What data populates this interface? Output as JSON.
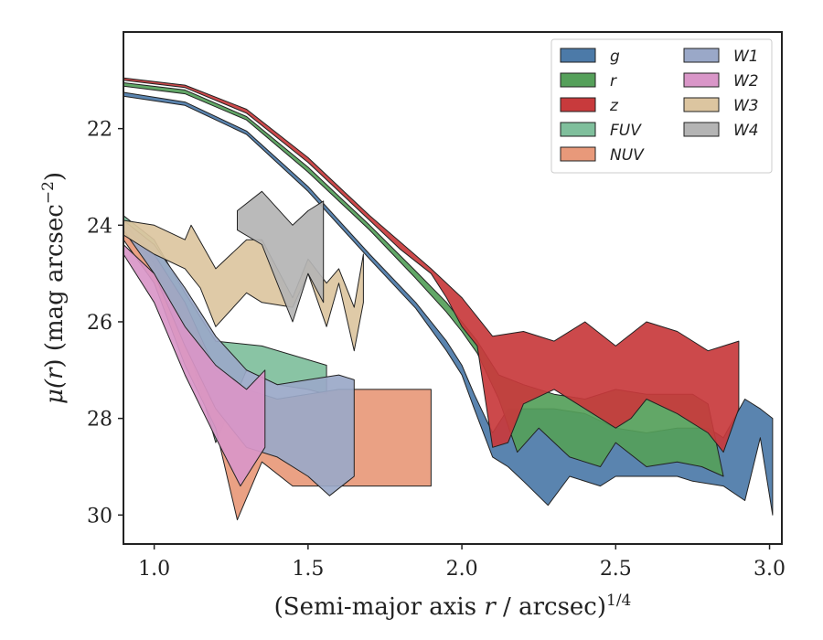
{
  "chart_data": {
    "type": "area",
    "xlabel_main": "(Semi-major axis ",
    "xlabel_var": "r",
    "xlabel_rest": " / arcsec)",
    "xlabel_sup": "1/4",
    "ylabel_main": "μ(",
    "ylabel_var": "r",
    "ylabel_rest": ") (mag arcsec",
    "ylabel_sup": "−2",
    "ylabel_close": ")",
    "xlim": [
      0.9,
      3.04
    ],
    "ylim": [
      30.6,
      20.0
    ],
    "y_inverted": true,
    "xticks": [
      1.0,
      1.5,
      2.0,
      2.5,
      3.0
    ],
    "xtick_labels": [
      "1.0",
      "1.5",
      "2.0",
      "2.5",
      "3.0"
    ],
    "yticks": [
      22,
      24,
      26,
      28,
      30
    ],
    "ytick_labels": [
      "22",
      "24",
      "26",
      "28",
      "30"
    ],
    "legend_position": "top-right",
    "legend_columns": 2,
    "series": [
      {
        "name": "g",
        "color": "#4c7aa8",
        "upper": [
          [
            0.9,
            21.25
          ],
          [
            1.1,
            21.45
          ],
          [
            1.3,
            22.05
          ],
          [
            1.5,
            23.2
          ],
          [
            1.7,
            24.6
          ],
          [
            1.85,
            25.6
          ],
          [
            1.95,
            26.4
          ],
          [
            2.0,
            26.9
          ],
          [
            2.04,
            27.5
          ],
          [
            2.1,
            28.3
          ],
          [
            2.15,
            27.8
          ],
          [
            2.3,
            27.8
          ],
          [
            2.4,
            27.9
          ],
          [
            2.5,
            28.2
          ],
          [
            2.6,
            28.3
          ],
          [
            2.7,
            28.2
          ],
          [
            2.8,
            28.2
          ],
          [
            2.85,
            28.4
          ],
          [
            2.92,
            27.6
          ],
          [
            2.97,
            27.8
          ],
          [
            3.01,
            28.0
          ]
        ],
        "lower": [
          [
            0.9,
            21.33
          ],
          [
            1.1,
            21.52
          ],
          [
            1.3,
            22.12
          ],
          [
            1.5,
            23.3
          ],
          [
            1.7,
            24.7
          ],
          [
            1.85,
            25.72
          ],
          [
            1.95,
            26.6
          ],
          [
            2.0,
            27.1
          ],
          [
            2.04,
            27.8
          ],
          [
            2.1,
            28.8
          ],
          [
            2.15,
            29.0
          ],
          [
            2.2,
            29.3
          ],
          [
            2.28,
            29.8
          ],
          [
            2.35,
            29.2
          ],
          [
            2.45,
            29.4
          ],
          [
            2.5,
            29.2
          ],
          [
            2.6,
            29.2
          ],
          [
            2.7,
            29.2
          ],
          [
            2.75,
            29.3
          ],
          [
            2.85,
            29.4
          ],
          [
            2.92,
            29.7
          ],
          [
            2.97,
            28.4
          ],
          [
            3.01,
            30.0
          ]
        ]
      },
      {
        "name": "r",
        "color": "#55a05a",
        "upper": [
          [
            0.9,
            21.05
          ],
          [
            1.1,
            21.2
          ],
          [
            1.3,
            21.75
          ],
          [
            1.5,
            22.8
          ],
          [
            1.7,
            24.0
          ],
          [
            1.85,
            24.95
          ],
          [
            1.95,
            25.6
          ],
          [
            2.0,
            26.0
          ],
          [
            2.05,
            26.4
          ],
          [
            2.12,
            27.1
          ],
          [
            2.2,
            27.3
          ],
          [
            2.3,
            27.5
          ],
          [
            2.4,
            27.6
          ],
          [
            2.5,
            27.4
          ],
          [
            2.6,
            27.5
          ],
          [
            2.7,
            27.5
          ],
          [
            2.75,
            27.5
          ],
          [
            2.8,
            27.7
          ]
        ],
        "lower": [
          [
            0.9,
            21.12
          ],
          [
            1.1,
            21.28
          ],
          [
            1.3,
            21.82
          ],
          [
            1.5,
            22.9
          ],
          [
            1.7,
            24.1
          ],
          [
            1.85,
            25.1
          ],
          [
            1.95,
            25.8
          ],
          [
            2.0,
            26.2
          ],
          [
            2.05,
            26.65
          ],
          [
            2.12,
            27.6
          ],
          [
            2.18,
            28.7
          ],
          [
            2.25,
            28.2
          ],
          [
            2.35,
            28.8
          ],
          [
            2.45,
            29.0
          ],
          [
            2.5,
            28.5
          ],
          [
            2.6,
            29.0
          ],
          [
            2.7,
            28.9
          ],
          [
            2.78,
            29.0
          ],
          [
            2.85,
            29.2
          ]
        ]
      },
      {
        "name": "z",
        "color": "#c83a3c",
        "upper": [
          [
            0.9,
            20.95
          ],
          [
            1.1,
            21.1
          ],
          [
            1.3,
            21.6
          ],
          [
            1.5,
            22.6
          ],
          [
            1.7,
            23.8
          ],
          [
            1.8,
            24.35
          ],
          [
            1.9,
            24.9
          ],
          [
            1.95,
            25.2
          ],
          [
            2.0,
            25.5
          ],
          [
            2.05,
            25.9
          ],
          [
            2.1,
            26.3
          ],
          [
            2.2,
            26.2
          ],
          [
            2.3,
            26.4
          ],
          [
            2.4,
            26.0
          ],
          [
            2.5,
            26.5
          ],
          [
            2.6,
            26.0
          ],
          [
            2.7,
            26.2
          ],
          [
            2.8,
            26.6
          ],
          [
            2.9,
            26.4
          ]
        ],
        "lower": [
          [
            0.9,
            21.0
          ],
          [
            1.1,
            21.15
          ],
          [
            1.3,
            21.68
          ],
          [
            1.5,
            22.7
          ],
          [
            1.7,
            23.9
          ],
          [
            1.8,
            24.5
          ],
          [
            1.9,
            25.0
          ],
          [
            1.95,
            25.5
          ],
          [
            2.0,
            26.1
          ],
          [
            2.05,
            26.5
          ],
          [
            2.1,
            28.6
          ],
          [
            2.15,
            28.5
          ],
          [
            2.2,
            27.7
          ],
          [
            2.3,
            27.4
          ],
          [
            2.4,
            27.8
          ],
          [
            2.5,
            28.2
          ],
          [
            2.55,
            28.0
          ],
          [
            2.6,
            27.6
          ],
          [
            2.7,
            27.9
          ],
          [
            2.8,
            28.3
          ],
          [
            2.85,
            28.7
          ],
          [
            2.9,
            27.8
          ]
        ]
      },
      {
        "name": "FUV",
        "color": "#7fbf9c",
        "upper": [
          [
            0.9,
            23.8
          ],
          [
            1.0,
            24.3
          ],
          [
            1.1,
            25.4
          ],
          [
            1.2,
            26.4
          ],
          [
            1.35,
            26.5
          ],
          [
            1.56,
            26.9
          ]
        ],
        "lower": [
          [
            0.9,
            23.9
          ],
          [
            1.0,
            24.8
          ],
          [
            1.1,
            26.3
          ],
          [
            1.2,
            28.5
          ],
          [
            1.3,
            27.0
          ],
          [
            1.4,
            27.3
          ],
          [
            1.5,
            27.4
          ],
          [
            1.56,
            27.5
          ]
        ]
      },
      {
        "name": "NUV",
        "color": "#e8997a",
        "upper": [
          [
            0.9,
            24.0
          ],
          [
            1.0,
            24.6
          ],
          [
            1.1,
            25.6
          ],
          [
            1.2,
            27.0
          ],
          [
            1.3,
            27.4
          ],
          [
            1.4,
            27.6
          ],
          [
            1.6,
            27.4
          ],
          [
            1.9,
            27.4
          ]
        ],
        "lower": [
          [
            0.9,
            24.3
          ],
          [
            1.0,
            25.2
          ],
          [
            1.1,
            26.9
          ],
          [
            1.2,
            28.2
          ],
          [
            1.27,
            30.1
          ],
          [
            1.35,
            28.9
          ],
          [
            1.45,
            29.4
          ],
          [
            1.6,
            29.4
          ],
          [
            1.9,
            29.4
          ]
        ]
      },
      {
        "name": "W1",
        "color": "#9aa8c8",
        "upper": [
          [
            0.9,
            23.9
          ],
          [
            1.0,
            24.4
          ],
          [
            1.1,
            25.3
          ],
          [
            1.2,
            26.3
          ],
          [
            1.3,
            27.0
          ],
          [
            1.4,
            27.3
          ],
          [
            1.5,
            27.2
          ],
          [
            1.6,
            27.1
          ],
          [
            1.65,
            27.2
          ]
        ],
        "lower": [
          [
            0.9,
            24.1
          ],
          [
            1.0,
            25.0
          ],
          [
            1.1,
            26.5
          ],
          [
            1.2,
            27.8
          ],
          [
            1.3,
            28.6
          ],
          [
            1.4,
            28.8
          ],
          [
            1.5,
            29.2
          ],
          [
            1.57,
            29.6
          ],
          [
            1.65,
            29.2
          ]
        ]
      },
      {
        "name": "W2",
        "color": "#d996c8",
        "upper": [
          [
            0.9,
            24.4
          ],
          [
            1.0,
            25.0
          ],
          [
            1.1,
            26.1
          ],
          [
            1.2,
            26.9
          ],
          [
            1.3,
            27.4
          ],
          [
            1.36,
            27.0
          ]
        ],
        "lower": [
          [
            0.9,
            24.6
          ],
          [
            1.0,
            25.6
          ],
          [
            1.1,
            27.1
          ],
          [
            1.2,
            28.4
          ],
          [
            1.28,
            29.4
          ],
          [
            1.36,
            28.6
          ]
        ]
      },
      {
        "name": "W3",
        "color": "#dcc5a0",
        "upper": [
          [
            0.9,
            23.9
          ],
          [
            1.0,
            24.0
          ],
          [
            1.1,
            24.3
          ],
          [
            1.12,
            24.0
          ],
          [
            1.2,
            24.9
          ],
          [
            1.3,
            24.3
          ],
          [
            1.35,
            24.3
          ],
          [
            1.45,
            25.5
          ],
          [
            1.5,
            24.7
          ],
          [
            1.56,
            25.2
          ],
          [
            1.6,
            24.9
          ],
          [
            1.65,
            25.7
          ],
          [
            1.68,
            24.6
          ]
        ],
        "lower": [
          [
            0.9,
            24.2
          ],
          [
            1.0,
            24.6
          ],
          [
            1.1,
            24.9
          ],
          [
            1.15,
            25.3
          ],
          [
            1.2,
            26.1
          ],
          [
            1.3,
            25.4
          ],
          [
            1.35,
            25.6
          ],
          [
            1.45,
            25.7
          ],
          [
            1.5,
            25.0
          ],
          [
            1.56,
            26.1
          ],
          [
            1.6,
            25.2
          ],
          [
            1.65,
            26.6
          ],
          [
            1.68,
            25.6
          ]
        ]
      },
      {
        "name": "W4",
        "color": "#b4b4b4",
        "upper": [
          [
            1.27,
            23.7
          ],
          [
            1.35,
            23.3
          ],
          [
            1.45,
            24.0
          ],
          [
            1.5,
            23.7
          ],
          [
            1.55,
            23.5
          ]
        ],
        "lower": [
          [
            1.27,
            24.1
          ],
          [
            1.35,
            24.4
          ],
          [
            1.45,
            26.0
          ],
          [
            1.5,
            25.0
          ],
          [
            1.55,
            25.6
          ]
        ]
      }
    ]
  }
}
